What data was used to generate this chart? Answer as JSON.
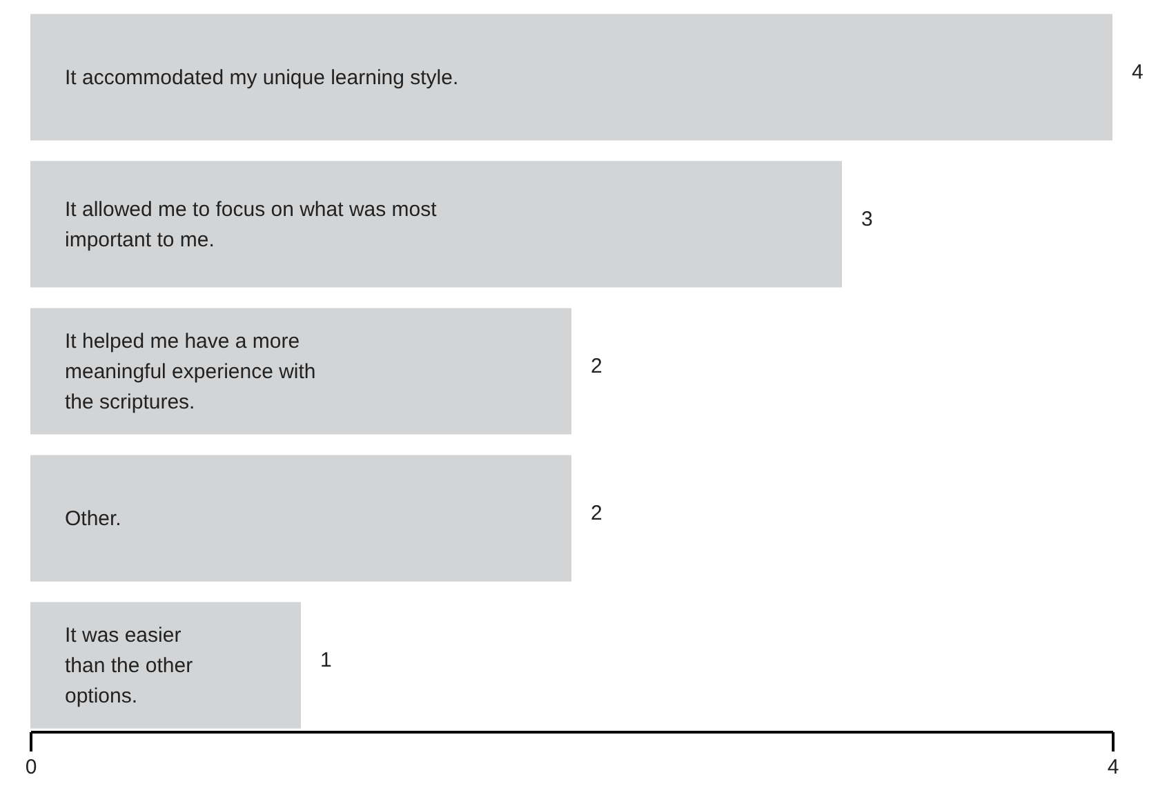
{
  "chart_data": {
    "type": "bar",
    "orientation": "horizontal",
    "categories": [
      "It accommodated my unique learning style.",
      "It allowed me to focus on what was most important to me.",
      "It helped me have a more meaningful experience with the scriptures.",
      "Other.",
      "It was easier than the other options."
    ],
    "values": [
      4,
      3,
      2,
      2,
      1
    ],
    "color": "#d3d4d6",
    "xlim": [
      0,
      4
    ],
    "xticks": [
      0,
      4
    ],
    "data_labels": true,
    "grid": false
  }
}
